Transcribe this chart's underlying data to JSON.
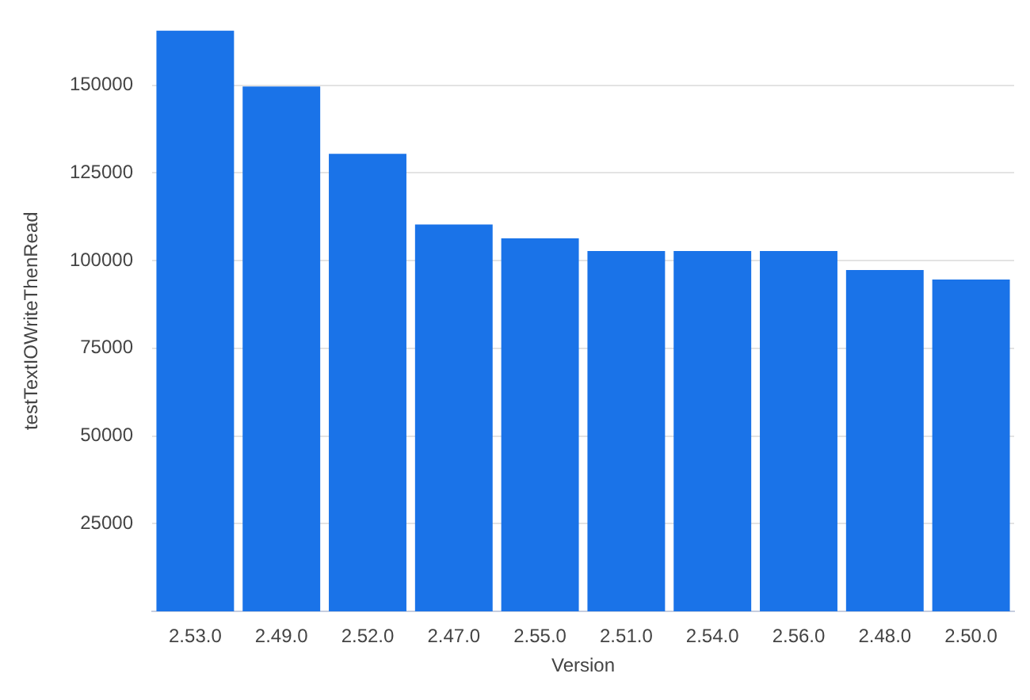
{
  "chart_data": {
    "type": "bar",
    "xlabel": "Version",
    "ylabel": "testTextIOWriteThenRead",
    "categories": [
      "2.53.0",
      "2.49.0",
      "2.52.0",
      "2.47.0",
      "2.55.0",
      "2.51.0",
      "2.54.0",
      "2.56.0",
      "2.48.0",
      "2.50.0"
    ],
    "values": [
      165600,
      149600,
      130400,
      110300,
      106300,
      102700,
      102700,
      102700,
      97300,
      94600
    ],
    "color": "#1a73e8",
    "ylim": [
      0,
      165600
    ],
    "yticks": [
      25000,
      50000,
      75000,
      100000,
      125000,
      150000
    ],
    "grid": "y",
    "legend": false
  }
}
